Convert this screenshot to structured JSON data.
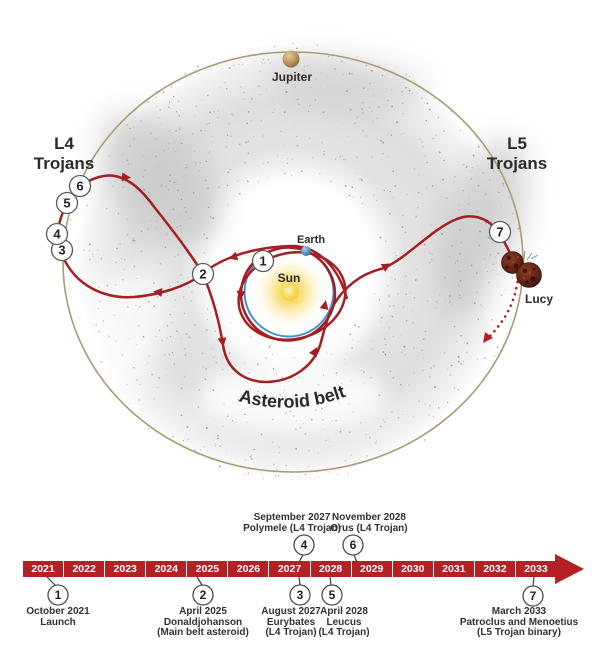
{
  "diagram": {
    "labels": {
      "jupiter": "Jupiter",
      "earth": "Earth",
      "sun": "Sun",
      "lucy": "Lucy",
      "l4_line1": "L4",
      "l4_line2": "Trojans",
      "l5_line1": "L5",
      "l5_line2": "Trojans",
      "asteroid_belt": "Asteroid belt"
    },
    "waypoints": [
      {
        "n": "1"
      },
      {
        "n": "2"
      },
      {
        "n": "3"
      },
      {
        "n": "4"
      },
      {
        "n": "5"
      },
      {
        "n": "6"
      },
      {
        "n": "7"
      }
    ],
    "colors": {
      "trajectory_red": "#a51e23",
      "timeline_red": "#b42125",
      "jupiter_orbit_tan": "#a99c72",
      "earth_orbit_blue": "#3f93c5",
      "sun_yellow": "#f6d24a"
    }
  },
  "timeline": {
    "years": [
      "2021",
      "2022",
      "2023",
      "2024",
      "2025",
      "2026",
      "2027",
      "2028",
      "2029",
      "2030",
      "2031",
      "2032",
      "2033"
    ],
    "events": [
      {
        "n": "1",
        "date": "October 2021",
        "name": "Launch",
        "detail": ""
      },
      {
        "n": "2",
        "date": "April 2025",
        "name": "Donaldjohanson",
        "detail": "(Main belt asteroid)"
      },
      {
        "n": "3",
        "date": "August 2027",
        "name": "Eurybates",
        "detail": "(L4 Trojan)"
      },
      {
        "n": "4",
        "date": "September 2027",
        "name": "Polymele (L4 Trojan)",
        "detail": ""
      },
      {
        "n": "5",
        "date": "April 2028",
        "name": "Leucus",
        "detail": "(L4 Trojan)"
      },
      {
        "n": "6",
        "date": "November 2028",
        "name": "Orus (L4 Trojan)",
        "detail": ""
      },
      {
        "n": "7",
        "date": "March 2033",
        "name": "Patroclus and Menoetius",
        "detail": "(L5 Trojan binary)"
      }
    ]
  }
}
